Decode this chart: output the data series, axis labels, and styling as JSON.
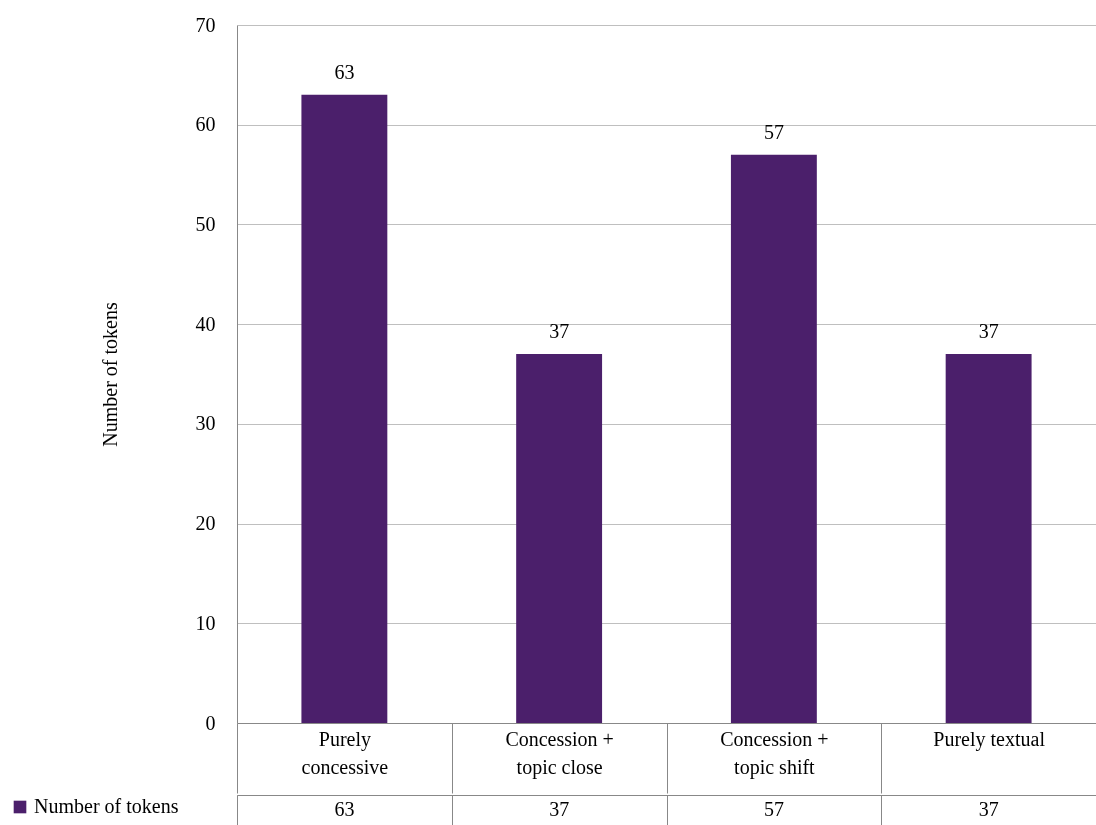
{
  "chart_data": {
    "type": "bar",
    "ylabel": "Number of tokens",
    "categories": [
      "Purely concessive",
      "Concession + topic close",
      "Concession + topic shift",
      "Purely textual"
    ],
    "series": [
      {
        "name": "Number of tokens",
        "color": "#4b1f6b",
        "values": [
          63,
          37,
          57,
          37
        ],
        "value_labels": [
          "63",
          "37",
          "57",
          "37"
        ]
      }
    ],
    "ylim": [
      0,
      70
    ],
    "yticks": [
      0,
      10,
      20,
      30,
      40,
      50,
      60,
      70
    ],
    "grid": "y",
    "annotations": [
      "63",
      "37",
      "57",
      "37"
    ],
    "legend": "bottom left"
  }
}
